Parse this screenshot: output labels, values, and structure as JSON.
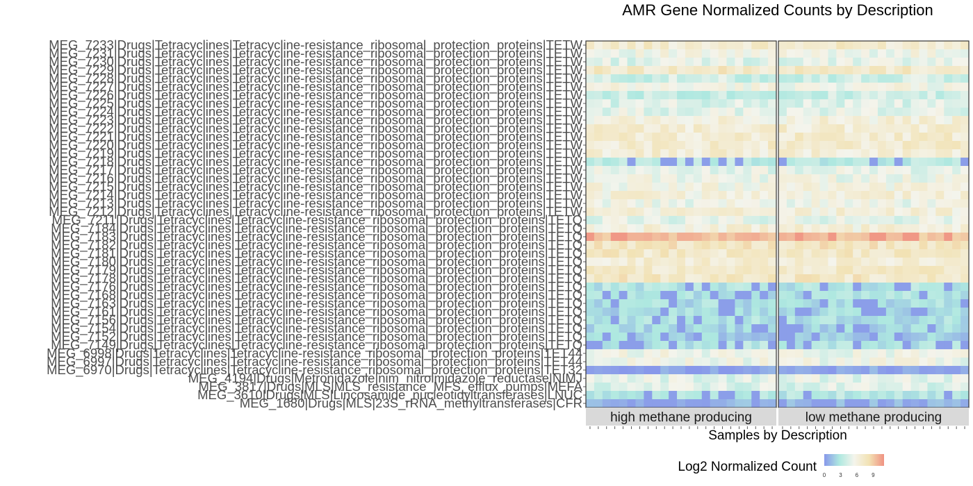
{
  "chart_data": {
    "type": "heatmap",
    "title": "AMR Gene Normalized Counts by Description",
    "xlabel": "Samples by Description",
    "ylabel": "",
    "legend": {
      "title": "Log2 Normalized Count",
      "ticks": [
        "0",
        "3",
        "6",
        "9"
      ],
      "range": [
        0,
        11
      ],
      "colors": [
        "#8898ea",
        "#aee8e0",
        "#f4f4ec",
        "#f2e2b4",
        "#f09282"
      ],
      "placement": "bottom"
    },
    "facets": [
      "high methane producing",
      "low methane producing"
    ],
    "samples_per_facet": [
      23,
      23
    ],
    "rows": [
      {
        "label": "MEG_7233|Drugs|Tetracyclines|Tetracycline-resistance_ribosomal_protection_proteins|TETW",
        "base": 6.9
      },
      {
        "label": "MEG_7231|Drugs|Tetracyclines|Tetracycline-resistance_ribosomal_protection_proteins|TETW",
        "base": 5.5
      },
      {
        "label": "MEG_7230|Drugs|Tetracyclines|Tetracycline-resistance_ribosomal_protection_proteins|TETW",
        "base": 4.8
      },
      {
        "label": "MEG_7229|Drugs|Tetracyclines|Tetracycline-resistance_ribosomal_protection_proteins|TETW",
        "base": 7.2
      },
      {
        "label": "MEG_7228|Drugs|Tetracyclines|Tetracycline-resistance_ribosomal_protection_proteins|TETW",
        "base": 4.0
      },
      {
        "label": "MEG_7227|Drugs|Tetracyclines|Tetracycline-resistance_ribosomal_protection_proteins|TETW",
        "base": 5.6
      },
      {
        "label": "MEG_7226|Drugs|Tetracyclines|Tetracycline-resistance_ribosomal_protection_proteins|TETW",
        "base": 3.8
      },
      {
        "label": "MEG_7225|Drugs|Tetracyclines|Tetracycline-resistance_ribosomal_protection_proteins|TETW",
        "base": 4.6
      },
      {
        "label": "MEG_7224|Drugs|Tetracyclines|Tetracycline-resistance_ribosomal_protection_proteins|TETW",
        "base": 4.9
      },
      {
        "label": "MEG_7223|Drugs|Tetracyclines|Tetracycline-resistance_ribosomal_protection_proteins|TETW",
        "base": 6.2
      },
      {
        "label": "MEG_7222|Drugs|Tetracyclines|Tetracycline-resistance_ribosomal_protection_proteins|TETW",
        "base": 6.6
      },
      {
        "label": "MEG_7221|Drugs|Tetracyclines|Tetracycline-resistance_ribosomal_protection_proteins|TETW",
        "base": 6.8
      },
      {
        "label": "MEG_7220|Drugs|Tetracyclines|Tetracycline-resistance_ribosomal_protection_proteins|TETW",
        "base": 6.8
      },
      {
        "label": "MEG_7219|Drugs|Tetracyclines|Tetracycline-resistance_ribosomal_protection_proteins|TETW",
        "base": 6.5
      },
      {
        "label": "MEG_7218|Drugs|Tetracyclines|Tetracycline-resistance_ribosomal_protection_proteins|TETW",
        "base": 3.4
      },
      {
        "label": "MEG_7217|Drugs|Tetracyclines|Tetracycline-resistance_ribosomal_protection_proteins|TETW",
        "base": 5.0
      },
      {
        "label": "MEG_7216|Drugs|Tetracyclines|Tetracycline-resistance_ribosomal_protection_proteins|TETW",
        "base": 5.4
      },
      {
        "label": "MEG_7215|Drugs|Tetracyclines|Tetracycline-resistance_ribosomal_protection_proteins|TETW",
        "base": 5.8
      },
      {
        "label": "MEG_7214|Drugs|Tetracyclines|Tetracycline-resistance_ribosomal_protection_proteins|TETW",
        "base": 6.2
      },
      {
        "label": "MEG_7213|Drugs|Tetracyclines|Tetracycline-resistance_ribosomal_protection_proteins|TETW",
        "base": 5.4
      },
      {
        "label": "MEG_7212|Drugs|Tetracyclines|Tetracycline-resistance_ribosomal_protection_proteins|TETW",
        "base": 6.3
      },
      {
        "label": "MEG_7211|Drugs|Tetracyclines|Tetracycline-resistance_ribosomal_protection_proteins|TETQ",
        "base": 5.0
      },
      {
        "label": "MEG_7184|Drugs|Tetracyclines|Tetracycline-resistance_ribosomal_protection_proteins|TETQ",
        "base": 6.2
      },
      {
        "label": "MEG_7183|Drugs|Tetracyclines|Tetracycline-resistance_ribosomal_protection_proteins|TETQ",
        "base": 9.6
      },
      {
        "label": "MEG_7182|Drugs|Tetracyclines|Tetracycline-resistance_ribosomal_protection_proteins|TETQ",
        "base": 7.6
      },
      {
        "label": "MEG_7181|Drugs|Tetracyclines|Tetracycline-resistance_ribosomal_protection_proteins|TETQ",
        "base": 7.2
      },
      {
        "label": "MEG_7180|Drugs|Tetracyclines|Tetracycline-resistance_ribosomal_protection_proteins|TETQ",
        "base": 6.6
      },
      {
        "label": "MEG_7179|Drugs|Tetracyclines|Tetracycline-resistance_ribosomal_protection_proteins|TETQ",
        "base": 7.0
      },
      {
        "label": "MEG_7178|Drugs|Tetracyclines|Tetracycline-resistance_ribosomal_protection_proteins|TETQ",
        "base": 7.3
      },
      {
        "label": "MEG_7176|Drugs|Tetracyclines|Tetracycline-resistance_ribosomal_protection_proteins|TETQ",
        "base": 3.2
      },
      {
        "label": "MEG_7168|Drugs|Tetracyclines|Tetracycline-resistance_ribosomal_protection_proteins|TETQ",
        "base": 3.0
      },
      {
        "label": "MEG_7163|Drugs|Tetracyclines|Tetracycline-resistance_ribosomal_protection_proteins|TETQ",
        "base": 2.8
      },
      {
        "label": "MEG_7161|Drugs|Tetracyclines|Tetracycline-resistance_ribosomal_protection_proteins|TETQ",
        "base": 2.6
      },
      {
        "label": "MEG_7156|Drugs|Tetracyclines|Tetracycline-resistance_ribosomal_protection_proteins|TETQ",
        "base": 2.9
      },
      {
        "label": "MEG_7154|Drugs|Tetracyclines|Tetracycline-resistance_ribosomal_protection_proteins|TETQ",
        "base": 2.5
      },
      {
        "label": "MEG_7152|Drugs|Tetracyclines|Tetracycline-resistance_ribosomal_protection_proteins|TETQ",
        "base": 2.2
      },
      {
        "label": "MEG_7149|Drugs|Tetracyclines|Tetracycline-resistance_ribosomal_protection_proteins|TETQ",
        "base": 3.2
      },
      {
        "label": "MEG_6998|Drugs|Tetracyclines|Tetracycline-resistance_ribosomal_protection_proteins|TET44",
        "base": 5.4
      },
      {
        "label": "MEG_6997|Drugs|Tetracyclines|Tetracycline-resistance_ribosomal_protection_proteins|TET44",
        "base": 5.4
      },
      {
        "label": "MEG_6970|Drugs|Tetracyclines|Tetracycline-resistance_ribosomal_protection_proteins|TET32",
        "base": 0.6
      },
      {
        "label": "MEG_4194|Drugs|Metronidazole|nim_nitroimidazole_reductase|NIMJ",
        "base": 4.8
      },
      {
        "label": "MEG_3817|Drugs|MLS|MLS_resistance_MFS_efflux_pumps|MEFA",
        "base": 4.6
      },
      {
        "label": "MEG_3610|Drugs|MLS|Lincosamide_nucleotidyltransferases|LNUC",
        "base": 3.4
      },
      {
        "label": "MEG_1680|Drugs|MLS|23S_rRNA_methyltransferases|CFR",
        "base": 1.4
      }
    ]
  }
}
